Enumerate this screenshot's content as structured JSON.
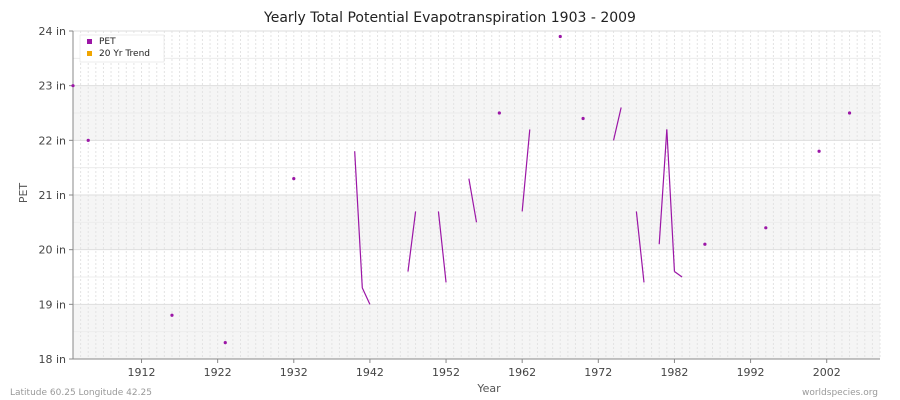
{
  "chart_data": {
    "type": "line",
    "title": "Yearly Total Potential Evapotranspiration 1903 - 2009",
    "xlabel": "Year",
    "ylabel": "PET",
    "xlim": [
      1903,
      2009
    ],
    "ylim": [
      18,
      24
    ],
    "x_ticks": [
      1912,
      1922,
      1932,
      1942,
      1952,
      1962,
      1972,
      1982,
      1992,
      2002
    ],
    "y_ticks": [
      {
        "value": 18,
        "label": "18 in"
      },
      {
        "value": 19,
        "label": "19 in"
      },
      {
        "value": 20,
        "label": "20 in"
      },
      {
        "value": 21,
        "label": "21 in"
      },
      {
        "value": 22,
        "label": "22 in"
      },
      {
        "value": 23,
        "label": "23 in"
      },
      {
        "value": 24,
        "label": "24 in"
      }
    ],
    "grid": true,
    "legend_position": "top-left",
    "series": [
      {
        "name": "PET",
        "color": "#9b16a6",
        "points": [
          [
            1903,
            23.0
          ],
          [
            1905,
            22.0
          ],
          [
            1916,
            18.8
          ],
          [
            1923,
            18.3
          ],
          [
            1932,
            21.3
          ],
          [
            1940,
            21.8
          ],
          [
            1941,
            19.3
          ],
          [
            1942,
            19.0
          ],
          [
            1947,
            19.6
          ],
          [
            1948,
            20.7
          ],
          [
            1951,
            20.7
          ],
          [
            1952,
            19.4
          ],
          [
            1955,
            21.3
          ],
          [
            1956,
            20.5
          ],
          [
            1959,
            22.5
          ],
          [
            1962,
            20.7
          ],
          [
            1963,
            22.2
          ],
          [
            1967,
            23.9
          ],
          [
            1970,
            22.4
          ],
          [
            1974,
            22.0
          ],
          [
            1975,
            22.6
          ],
          [
            1977,
            20.7
          ],
          [
            1978,
            19.4
          ],
          [
            1980,
            20.1
          ],
          [
            1981,
            22.2
          ],
          [
            1982,
            19.6
          ],
          [
            1983,
            19.5
          ],
          [
            1986,
            20.1
          ],
          [
            1994,
            20.4
          ],
          [
            2001,
            21.8
          ],
          [
            2005,
            22.5
          ]
        ]
      },
      {
        "name": "20 Yr Trend",
        "color": "#f0a500",
        "points": []
      }
    ]
  },
  "footer": {
    "left": "Latitude 60.25 Longitude 42.25",
    "right": "worldspecies.org"
  }
}
